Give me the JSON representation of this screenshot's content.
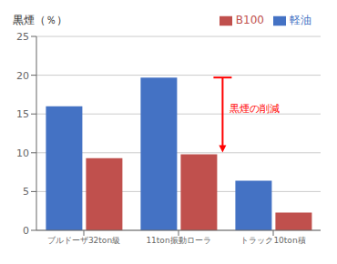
{
  "chart_data": {
    "type": "bar",
    "ylabel": "黒煙（％）",
    "categories": [
      "ブルドーザ32ton級",
      "11ton振動ローラ",
      "トラック10ton積"
    ],
    "series": [
      {
        "name": "軽油",
        "color": "#4472C4",
        "values": [
          16.0,
          19.7,
          6.4
        ]
      },
      {
        "name": "B100",
        "color": "#C0504D",
        "values": [
          9.3,
          9.8,
          2.3
        ]
      }
    ],
    "ylim": [
      0,
      25
    ],
    "yticks": [
      0,
      5,
      10,
      15,
      20,
      25
    ],
    "grid": true,
    "legend": "top",
    "annotation": {
      "text": "黒煙の削減",
      "color": "red",
      "category": "11ton振動ローラ"
    }
  }
}
